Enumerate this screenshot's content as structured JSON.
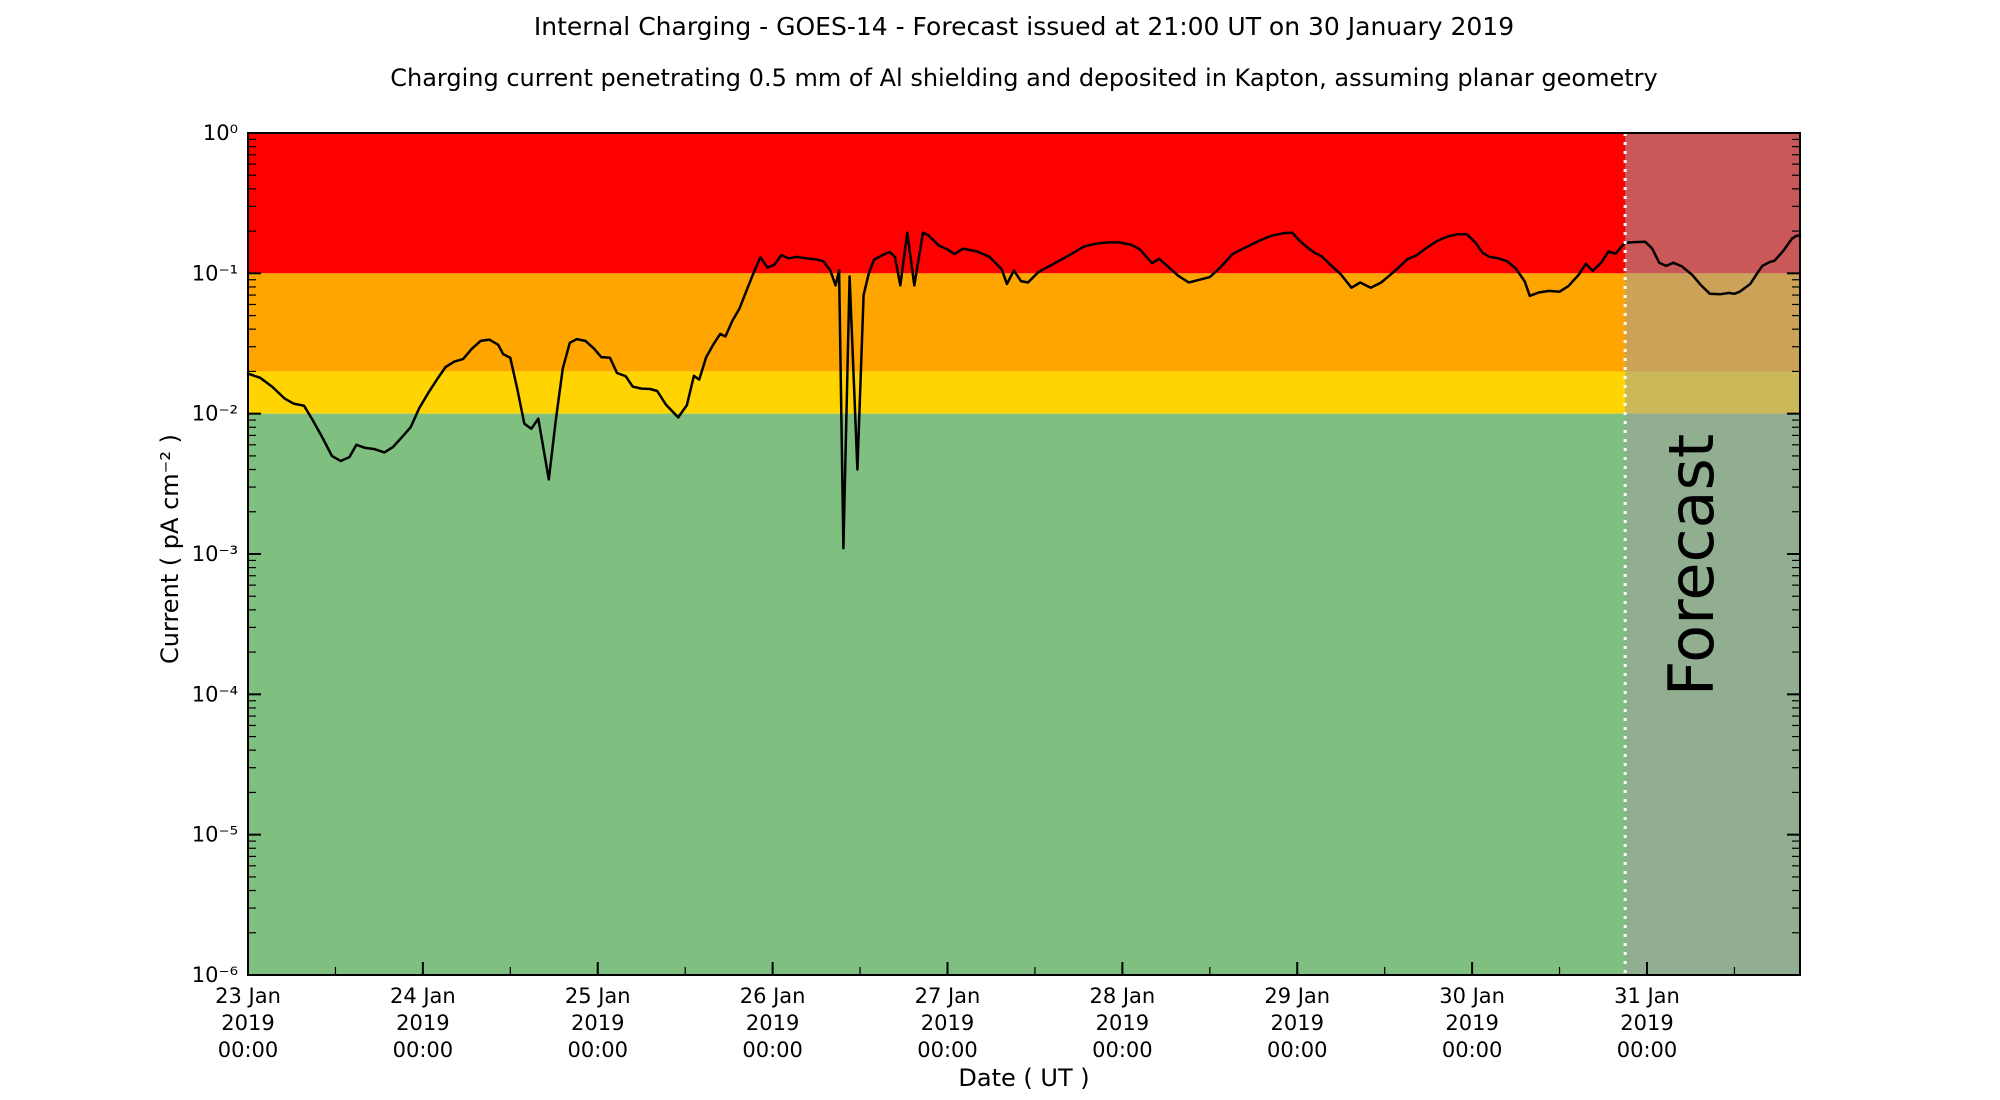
{
  "header": {
    "title": "Internal Charging - GOES-14 - Forecast issued at 21:00 UT on 30 January 2019",
    "subtitle": "Charging current penetrating 0.5 mm of Al shielding and deposited in Kapton, assuming planar geometry"
  },
  "chart_data": {
    "type": "line",
    "title": "Internal Charging - GOES-14 - Forecast issued at 21:00 UT on 30 January 2019",
    "subtitle": "Charging current penetrating 0.5 mm of Al shielding and deposited in Kapton, assuming planar geometry",
    "xlabel": "Date ( UT )",
    "ylabel": "Current ( pA cm⁻² )",
    "y_scale": "log",
    "ylim": [
      1e-06,
      1
    ],
    "y_ticks": [
      "10⁰",
      "10⁻¹",
      "10⁻²",
      "10⁻³",
      "10⁻⁴",
      "10⁻⁵",
      "10⁻⁶"
    ],
    "y_tick_values": [
      1,
      0.1,
      0.01,
      0.001,
      0.0001,
      1e-05,
      1e-06
    ],
    "x_range_days": [
      0,
      8.875
    ],
    "x_minor_tick_interval_days": 0.5,
    "x_ticks": [
      {
        "day": 0,
        "lines": [
          "23 Jan",
          "2019",
          "00:00"
        ]
      },
      {
        "day": 1,
        "lines": [
          "24 Jan",
          "2019",
          "00:00"
        ]
      },
      {
        "day": 2,
        "lines": [
          "25 Jan",
          "2019",
          "00:00"
        ]
      },
      {
        "day": 3,
        "lines": [
          "26 Jan",
          "2019",
          "00:00"
        ]
      },
      {
        "day": 4,
        "lines": [
          "27 Jan",
          "2019",
          "00:00"
        ]
      },
      {
        "day": 5,
        "lines": [
          "28 Jan",
          "2019",
          "00:00"
        ]
      },
      {
        "day": 6,
        "lines": [
          "29 Jan",
          "2019",
          "00:00"
        ]
      },
      {
        "day": 7,
        "lines": [
          "30 Jan",
          "2019",
          "00:00"
        ]
      },
      {
        "day": 8,
        "lines": [
          "31 Jan",
          "2019",
          "00:00"
        ]
      }
    ],
    "grid": "off",
    "legend": "none",
    "bands": [
      {
        "name": "red-alert",
        "from": 0.1,
        "to": 1.0,
        "color": "#fe0000"
      },
      {
        "name": "orange-warning",
        "from": 0.02,
        "to": 0.1,
        "color": "#ffa500"
      },
      {
        "name": "yellow-caution",
        "from": 0.01,
        "to": 0.02,
        "color": "#ffd400"
      },
      {
        "name": "green-quiet",
        "from": 1e-06,
        "to": 0.01,
        "color": "#7fbf7f"
      }
    ],
    "forecast": {
      "start_day": 7.875,
      "start_label": "30 Jan 21:00 UT",
      "watermark": "Forecast",
      "watermark_color": "rgba(60,60,60,0.38)",
      "overlay_color": "rgba(160,160,160,0.55)",
      "divider_color": "#ffffff"
    },
    "series": [
      {
        "name": "charging-current",
        "color": "#000000",
        "units": "pA cm-2",
        "points": [
          [
            0.0,
            0.0193
          ],
          [
            0.07,
            0.018
          ],
          [
            0.14,
            0.0155
          ],
          [
            0.21,
            0.0128
          ],
          [
            0.26,
            0.0118
          ],
          [
            0.32,
            0.0114
          ],
          [
            0.37,
            0.009
          ],
          [
            0.43,
            0.0066
          ],
          [
            0.48,
            0.005
          ],
          [
            0.53,
            0.0046
          ],
          [
            0.58,
            0.0049
          ],
          [
            0.62,
            0.006
          ],
          [
            0.67,
            0.0057
          ],
          [
            0.72,
            0.0056
          ],
          [
            0.78,
            0.0053
          ],
          [
            0.83,
            0.0058
          ],
          [
            0.88,
            0.0068
          ],
          [
            0.93,
            0.008
          ],
          [
            0.98,
            0.011
          ],
          [
            1.03,
            0.014
          ],
          [
            1.08,
            0.0175
          ],
          [
            1.13,
            0.0215
          ],
          [
            1.18,
            0.0235
          ],
          [
            1.23,
            0.0245
          ],
          [
            1.28,
            0.029
          ],
          [
            1.33,
            0.033
          ],
          [
            1.38,
            0.0337
          ],
          [
            1.43,
            0.031
          ],
          [
            1.46,
            0.0265
          ],
          [
            1.5,
            0.025
          ],
          [
            1.54,
            0.015
          ],
          [
            1.58,
            0.0085
          ],
          [
            1.62,
            0.0078
          ],
          [
            1.66,
            0.0092
          ],
          [
            1.72,
            0.0034
          ],
          [
            1.76,
            0.009
          ],
          [
            1.8,
            0.021
          ],
          [
            1.84,
            0.032
          ],
          [
            1.88,
            0.034
          ],
          [
            1.93,
            0.033
          ],
          [
            1.98,
            0.029
          ],
          [
            2.02,
            0.0253
          ],
          [
            2.07,
            0.025
          ],
          [
            2.11,
            0.0195
          ],
          [
            2.16,
            0.0185
          ],
          [
            2.2,
            0.0156
          ],
          [
            2.25,
            0.0151
          ],
          [
            2.3,
            0.015
          ],
          [
            2.34,
            0.0145
          ],
          [
            2.39,
            0.0116
          ],
          [
            2.43,
            0.0103
          ],
          [
            2.46,
            0.0094
          ],
          [
            2.51,
            0.0115
          ],
          [
            2.55,
            0.0186
          ],
          [
            2.58,
            0.0175
          ],
          [
            2.62,
            0.0253
          ],
          [
            2.66,
            0.031
          ],
          [
            2.7,
            0.037
          ],
          [
            2.73,
            0.0355
          ],
          [
            2.77,
            0.046
          ],
          [
            2.81,
            0.056
          ],
          [
            2.85,
            0.075
          ],
          [
            2.89,
            0.1
          ],
          [
            2.93,
            0.13
          ],
          [
            2.97,
            0.11
          ],
          [
            3.01,
            0.115
          ],
          [
            3.05,
            0.135
          ],
          [
            3.09,
            0.128
          ],
          [
            3.14,
            0.131
          ],
          [
            3.19,
            0.128
          ],
          [
            3.24,
            0.126
          ],
          [
            3.29,
            0.122
          ],
          [
            3.33,
            0.105
          ],
          [
            3.36,
            0.082
          ],
          [
            3.38,
            0.105
          ],
          [
            3.405,
            0.0011
          ],
          [
            3.44,
            0.095
          ],
          [
            3.485,
            0.004
          ],
          [
            3.52,
            0.07
          ],
          [
            3.55,
            0.1
          ],
          [
            3.58,
            0.125
          ],
          [
            3.63,
            0.135
          ],
          [
            3.67,
            0.142
          ],
          [
            3.7,
            0.131
          ],
          [
            3.73,
            0.082
          ],
          [
            3.77,
            0.195
          ],
          [
            3.81,
            0.082
          ],
          [
            3.86,
            0.195
          ],
          [
            3.89,
            0.187
          ],
          [
            3.95,
            0.158
          ],
          [
            4.0,
            0.148
          ],
          [
            4.04,
            0.137
          ],
          [
            4.09,
            0.15
          ],
          [
            4.17,
            0.143
          ],
          [
            4.24,
            0.131
          ],
          [
            4.31,
            0.107
          ],
          [
            4.34,
            0.084
          ],
          [
            4.38,
            0.105
          ],
          [
            4.42,
            0.088
          ],
          [
            4.46,
            0.086
          ],
          [
            4.52,
            0.102
          ],
          [
            4.58,
            0.112
          ],
          [
            4.65,
            0.125
          ],
          [
            4.72,
            0.14
          ],
          [
            4.78,
            0.155
          ],
          [
            4.85,
            0.163
          ],
          [
            4.92,
            0.166
          ],
          [
            4.98,
            0.166
          ],
          [
            5.05,
            0.16
          ],
          [
            5.1,
            0.148
          ],
          [
            5.14,
            0.13
          ],
          [
            5.17,
            0.118
          ],
          [
            5.21,
            0.127
          ],
          [
            5.26,
            0.112
          ],
          [
            5.32,
            0.096
          ],
          [
            5.38,
            0.086
          ],
          [
            5.44,
            0.09
          ],
          [
            5.5,
            0.094
          ],
          [
            5.56,
            0.11
          ],
          [
            5.63,
            0.137
          ],
          [
            5.7,
            0.152
          ],
          [
            5.78,
            0.17
          ],
          [
            5.85,
            0.185
          ],
          [
            5.92,
            0.193
          ],
          [
            5.97,
            0.195
          ],
          [
            6.02,
            0.168
          ],
          [
            6.06,
            0.152
          ],
          [
            6.1,
            0.14
          ],
          [
            6.14,
            0.132
          ],
          [
            6.19,
            0.115
          ],
          [
            6.25,
            0.098
          ],
          [
            6.31,
            0.079
          ],
          [
            6.36,
            0.086
          ],
          [
            6.42,
            0.079
          ],
          [
            6.48,
            0.086
          ],
          [
            6.53,
            0.097
          ],
          [
            6.58,
            0.11
          ],
          [
            6.63,
            0.126
          ],
          [
            6.68,
            0.134
          ],
          [
            6.74,
            0.152
          ],
          [
            6.8,
            0.17
          ],
          [
            6.86,
            0.183
          ],
          [
            6.92,
            0.19
          ],
          [
            6.97,
            0.19
          ],
          [
            7.02,
            0.165
          ],
          [
            7.06,
            0.14
          ],
          [
            7.1,
            0.131
          ],
          [
            7.15,
            0.128
          ],
          [
            7.2,
            0.122
          ],
          [
            7.25,
            0.108
          ],
          [
            7.3,
            0.088
          ],
          [
            7.33,
            0.069
          ],
          [
            7.38,
            0.073
          ],
          [
            7.44,
            0.075
          ],
          [
            7.5,
            0.074
          ],
          [
            7.55,
            0.081
          ],
          [
            7.61,
            0.098
          ],
          [
            7.65,
            0.117
          ],
          [
            7.69,
            0.104
          ],
          [
            7.74,
            0.12
          ],
          [
            7.78,
            0.143
          ],
          [
            7.82,
            0.138
          ],
          [
            7.86,
            0.158
          ],
          [
            7.875,
            0.165
          ],
          [
            7.93,
            0.167
          ],
          [
            7.99,
            0.168
          ],
          [
            8.03,
            0.15
          ],
          [
            8.07,
            0.119
          ],
          [
            8.11,
            0.113
          ],
          [
            8.15,
            0.119
          ],
          [
            8.2,
            0.112
          ],
          [
            8.26,
            0.097
          ],
          [
            8.31,
            0.082
          ],
          [
            8.36,
            0.0715
          ],
          [
            8.42,
            0.071
          ],
          [
            8.47,
            0.0725
          ],
          [
            8.5,
            0.0715
          ],
          [
            8.53,
            0.074
          ],
          [
            8.59,
            0.084
          ],
          [
            8.63,
            0.1
          ],
          [
            8.66,
            0.113
          ],
          [
            8.7,
            0.12
          ],
          [
            8.73,
            0.123
          ],
          [
            8.78,
            0.145
          ],
          [
            8.83,
            0.177
          ],
          [
            8.855,
            0.185
          ],
          [
            8.875,
            0.186
          ]
        ]
      }
    ]
  }
}
